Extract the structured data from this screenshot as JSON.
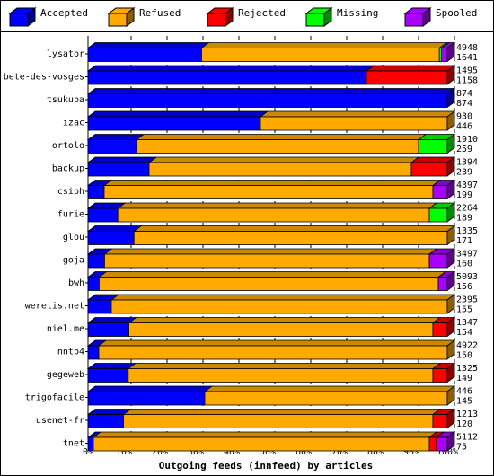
{
  "chart_data": {
    "type": "bar",
    "orientation": "horizontal",
    "stacked": true,
    "percent_stacked": true,
    "xlabel": "Outgoing feeds (innfeed) by articles",
    "xlim": [
      0,
      100
    ],
    "x_ticks": [
      "0%",
      "10%",
      "20%",
      "30%",
      "40%",
      "50%",
      "60%",
      "70%",
      "80%",
      "90%",
      "100%"
    ],
    "legend_position": "top",
    "series": [
      {
        "name": "Accepted",
        "color": "#0000ff"
      },
      {
        "name": "Refused",
        "color": "#ffaa00"
      },
      {
        "name": "Rejected",
        "color": "#ff0000"
      },
      {
        "name": "Missing",
        "color": "#00ff00"
      },
      {
        "name": "Spooled",
        "color": "#aa00ff"
      }
    ],
    "categories": [
      "lysator",
      "bete-des-vosges",
      "tsukuba",
      "izac",
      "ortolo",
      "backup",
      "csiph",
      "furie",
      "glou",
      "goja",
      "bwh",
      "weretis.net",
      "niel.me",
      "nntp4",
      "gegeweb",
      "trigofacile",
      "usenet-fr",
      "tnet"
    ],
    "rows": [
      {
        "name": "lysator",
        "total": 4948,
        "accepted": 1641,
        "pct": [
          31.6,
          66.2,
          0,
          0.6,
          1.6
        ]
      },
      {
        "name": "bete-des-vosges",
        "total": 1495,
        "accepted": 1158,
        "pct": [
          77.5,
          0,
          22.5,
          0,
          0
        ]
      },
      {
        "name": "tsukuba",
        "total": 874,
        "accepted": 874,
        "pct": [
          100,
          0,
          0,
          0,
          0
        ]
      },
      {
        "name": "izac",
        "total": 930,
        "accepted": 446,
        "pct": [
          48,
          52,
          0,
          0,
          0
        ]
      },
      {
        "name": "ortolo",
        "total": 1910,
        "accepted": 259,
        "pct": [
          13.5,
          78.5,
          0,
          8,
          0
        ]
      },
      {
        "name": "backup",
        "total": 1394,
        "accepted": 239,
        "pct": [
          17,
          73,
          10,
          0,
          0
        ]
      },
      {
        "name": "csiph",
        "total": 4397,
        "accepted": 199,
        "pct": [
          4.5,
          91.5,
          0,
          0,
          4
        ]
      },
      {
        "name": "furie",
        "total": 2264,
        "accepted": 189,
        "pct": [
          8.3,
          86.7,
          0,
          5,
          0
        ]
      },
      {
        "name": "glou",
        "total": 1335,
        "accepted": 171,
        "pct": [
          12.8,
          87.2,
          0,
          0,
          0
        ]
      },
      {
        "name": "goja",
        "total": 3497,
        "accepted": 160,
        "pct": [
          4.6,
          90.4,
          0,
          0,
          5
        ]
      },
      {
        "name": "bwh",
        "total": 5093,
        "accepted": 156,
        "pct": [
          3.1,
          94.4,
          0,
          0,
          2.5
        ]
      },
      {
        "name": "weretis.net",
        "total": 2395,
        "accepted": 155,
        "pct": [
          6.5,
          93.5,
          0,
          0,
          0
        ]
      },
      {
        "name": "niel.me",
        "total": 1347,
        "accepted": 154,
        "pct": [
          11.4,
          84.6,
          4,
          0,
          0
        ]
      },
      {
        "name": "nntp4",
        "total": 4922,
        "accepted": 150,
        "pct": [
          3,
          97,
          0,
          0,
          0
        ]
      },
      {
        "name": "gegeweb",
        "total": 1325,
        "accepted": 149,
        "pct": [
          11.2,
          84.8,
          4,
          0,
          0
        ]
      },
      {
        "name": "trigofacile",
        "total": 446,
        "accepted": 145,
        "pct": [
          32.5,
          67.5,
          0,
          0,
          0
        ]
      },
      {
        "name": "usenet-fr",
        "total": 1213,
        "accepted": 120,
        "pct": [
          9.9,
          86.1,
          4,
          0,
          0
        ]
      },
      {
        "name": "tnet",
        "total": 5112,
        "accepted": 75,
        "pct": [
          1.5,
          93.5,
          2,
          0,
          3
        ]
      }
    ]
  }
}
